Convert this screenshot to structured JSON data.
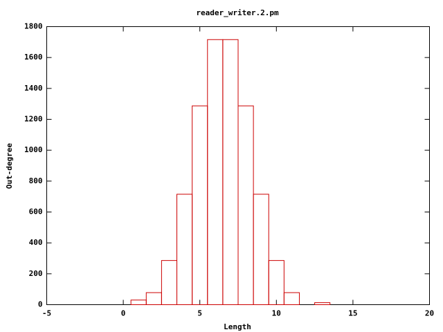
{
  "chart_data": {
    "type": "bar",
    "title": "reader_writer.2.pm",
    "x_label": "Length",
    "y_label": "Out-degree",
    "x": [
      1,
      2,
      3,
      4,
      5,
      6,
      7,
      8,
      9,
      10,
      11,
      13
    ],
    "values": [
      30,
      78,
      286,
      715,
      1287,
      1716,
      1716,
      1287,
      715,
      286,
      78,
      13
    ],
    "color": "#cc0000",
    "xlim": [
      -5,
      20
    ],
    "xticks": [
      -5,
      0,
      5,
      10,
      15,
      20
    ],
    "ylim": [
      0,
      1800
    ],
    "yticks": [
      0,
      200,
      400,
      600,
      800,
      1000,
      1200,
      1400,
      1600,
      1800
    ],
    "grid": false
  }
}
